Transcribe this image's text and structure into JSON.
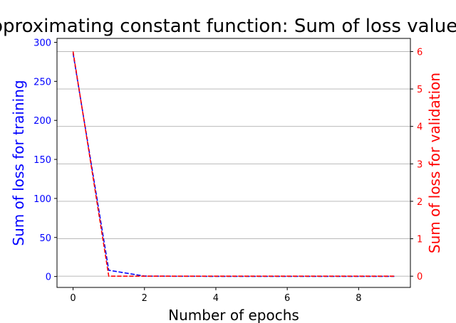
{
  "chart_data": {
    "type": "line",
    "title": "Approximating constant function: Sum of loss value for",
    "xlabel": "Number of epochs",
    "y_left_label": "Sum of loss for training",
    "y_right_label": "Sum of loss for validation",
    "x": [
      0,
      1,
      2,
      3,
      4,
      5,
      6,
      7,
      8,
      9
    ],
    "x_ticks": [
      0,
      2,
      4,
      6,
      8
    ],
    "x_range": [
      -0.45,
      9.45
    ],
    "y_left_range": [
      -14,
      305
    ],
    "y_left_ticks": [
      0,
      50,
      100,
      150,
      200,
      250,
      300
    ],
    "y_right_range": [
      -0.3,
      6.35
    ],
    "y_right_ticks": [
      0,
      1,
      2,
      3,
      4,
      5,
      6
    ],
    "grid": "horizontal, right axis",
    "series": [
      {
        "axis": "left",
        "style": "dashed",
        "color": "#0000ff",
        "values": [
          286,
          8,
          0.5,
          0.3,
          0.2,
          0.2,
          0.2,
          0.2,
          0.2,
          0.2
        ]
      },
      {
        "axis": "right",
        "style": "dashed",
        "color": "#ff0000",
        "values": [
          6.0,
          0.0,
          0.0,
          0.0,
          0.0,
          0.0,
          0.0,
          0.0,
          0.0,
          0.0
        ]
      }
    ],
    "colors": {
      "left_axis": "#0000ff",
      "right_axis": "#ff0000",
      "grid": "#b0b0b0"
    }
  }
}
